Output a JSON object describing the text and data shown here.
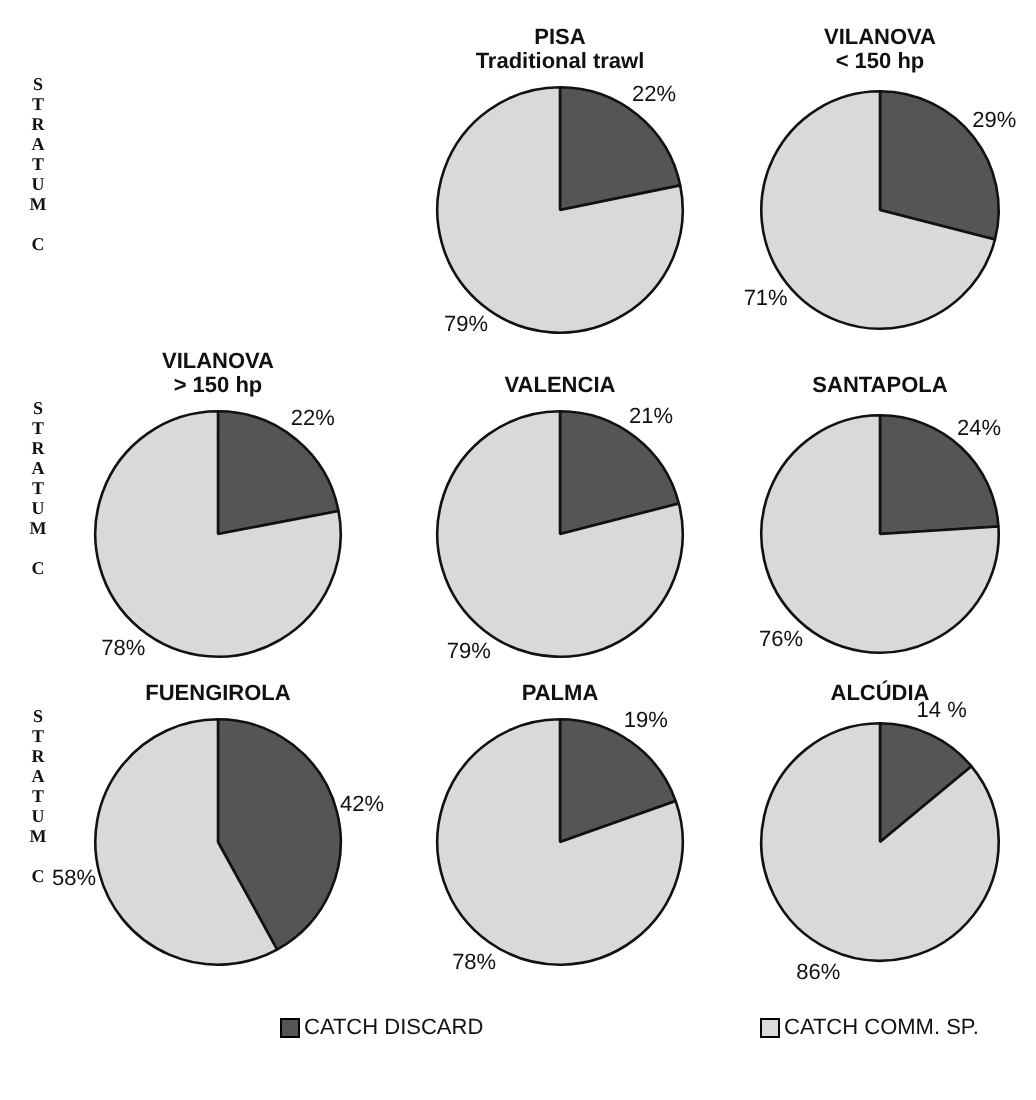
{
  "chart_data": [
    {
      "type": "pie",
      "title": "PISA",
      "subtitle": "Traditional trawl",
      "categories": [
        "CATCH DISCARD",
        "CATCH COMM. SP."
      ],
      "values": [
        22,
        79
      ],
      "colors": [
        "#555555",
        "#d9d9d9"
      ],
      "value_labels": [
        "22%",
        "79%"
      ],
      "legend": "bottom",
      "annotations": [
        "STRATUM C"
      ]
    },
    {
      "type": "pie",
      "title": "VILANOVA",
      "subtitle": "< 150 hp",
      "categories": [
        null,
        null
      ],
      "values": [
        29,
        71
      ],
      "colors": [
        "#555555",
        "#d9d9d9"
      ],
      "value_labels": [
        "29%",
        "71%"
      ]
    },
    {
      "type": "pie",
      "title": "VILANOVA",
      "subtitle": "> 150 hp",
      "categories": [
        null,
        null
      ],
      "values": [
        22,
        78
      ],
      "colors": [
        "#555555",
        "#d9d9d9"
      ],
      "value_labels": [
        "22%",
        "78%"
      ],
      "annotations": [
        "STRATUM C"
      ]
    },
    {
      "type": "pie",
      "title": "VALENCIA",
      "categories": [
        null,
        null
      ],
      "values": [
        21,
        79
      ],
      "colors": [
        "#555555",
        "#d9d9d9"
      ],
      "value_labels": [
        "21%",
        "79%"
      ]
    },
    {
      "type": "pie",
      "title": "SANTAPOLA",
      "categories": [
        null,
        null
      ],
      "values": [
        24,
        76
      ],
      "colors": [
        "#555555",
        "#d9d9d9"
      ],
      "value_labels": [
        "24%",
        "76%"
      ]
    },
    {
      "type": "pie",
      "title": "FUENGIROLA",
      "categories": [
        null,
        null
      ],
      "values": [
        42,
        58
      ],
      "colors": [
        "#555555",
        "#d9d9d9"
      ],
      "value_labels": [
        "42%",
        "58%"
      ],
      "annotations": [
        "STRATUM C"
      ]
    },
    {
      "type": "pie",
      "title": "PALMA",
      "categories": [
        null,
        null
      ],
      "values": [
        19,
        78
      ],
      "colors": [
        "#555555",
        "#d9d9d9"
      ],
      "value_labels": [
        "19%",
        "78%"
      ]
    },
    {
      "type": "pie",
      "title": "ALCÚDIA",
      "categories": [
        null,
        null
      ],
      "values": [
        14,
        86
      ],
      "colors": [
        "#555555",
        "#d9d9d9"
      ],
      "value_labels": [
        "14 %",
        "86%"
      ]
    }
  ]
}
